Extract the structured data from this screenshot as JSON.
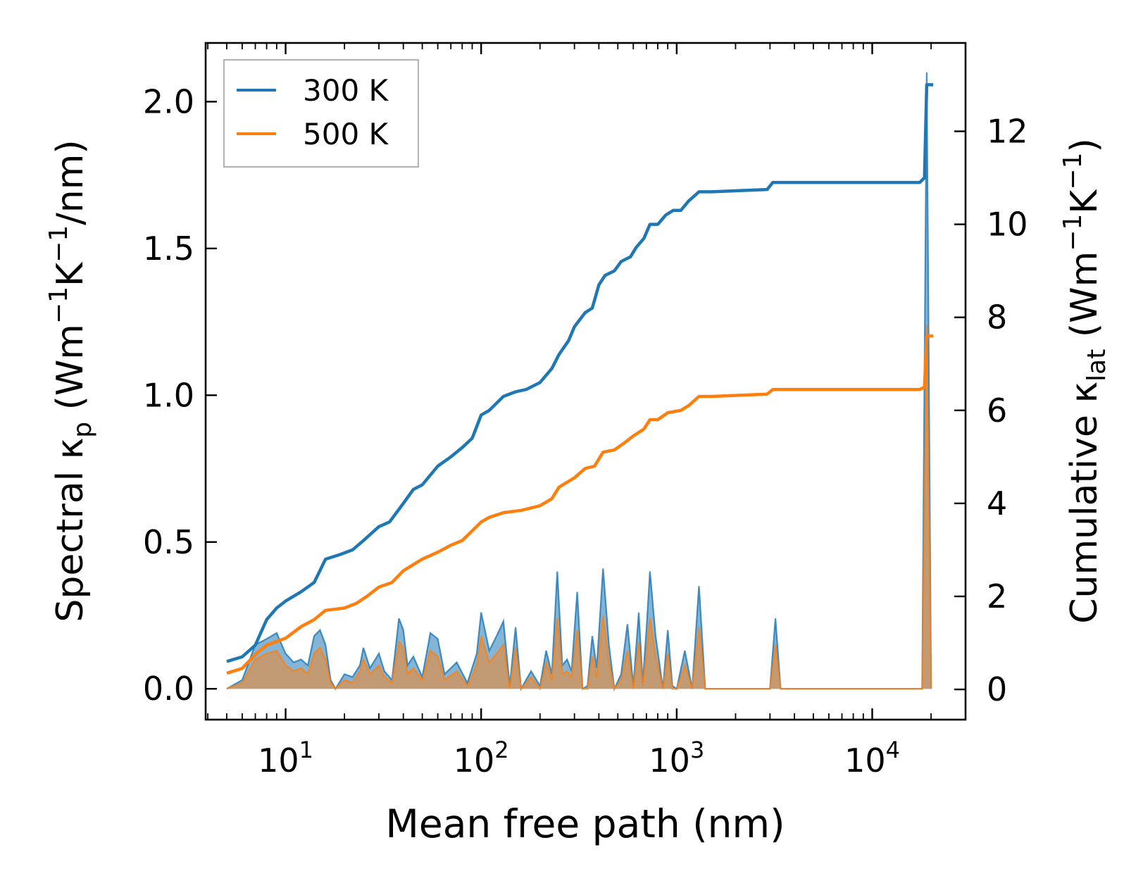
{
  "chart_data": {
    "type": "line",
    "x_scale": "log",
    "xlabel": "Mean free path (nm)",
    "ylabel_left": {
      "pre": "Spectral κ",
      "sub": "p",
      "post": " (Wm",
      "sup1": "−1",
      "mid": "K",
      "sup2": "−1",
      "tail": "/nm)"
    },
    "ylabel_right": {
      "pre": "Cumulative κ",
      "sub": "lat",
      "post": " (Wm",
      "sup1": "−1",
      "mid": "K",
      "sup2": "−1",
      "tail": ")"
    },
    "xlim": [
      3.9,
      30000
    ],
    "ylim_left": [
      -0.105,
      2.2
    ],
    "ylim_right": [
      -0.65,
      13.9
    ],
    "x_ticks": [
      {
        "value": 10,
        "base": "10",
        "exp": "1"
      },
      {
        "value": 100,
        "base": "10",
        "exp": "2"
      },
      {
        "value": 1000,
        "base": "10",
        "exp": "3"
      },
      {
        "value": 10000,
        "base": "10",
        "exp": "4"
      }
    ],
    "y_ticks_left": [
      {
        "value": 0.0,
        "label": "0.0"
      },
      {
        "value": 0.5,
        "label": "0.5"
      },
      {
        "value": 1.0,
        "label": "1.0"
      },
      {
        "value": 1.5,
        "label": "1.5"
      },
      {
        "value": 2.0,
        "label": "2.0"
      }
    ],
    "y_ticks_right": [
      {
        "value": 0,
        "label": "0"
      },
      {
        "value": 2,
        "label": "2"
      },
      {
        "value": 4,
        "label": "4"
      },
      {
        "value": 6,
        "label": "6"
      },
      {
        "value": 8,
        "label": "8"
      },
      {
        "value": 10,
        "label": "10"
      },
      {
        "value": 12,
        "label": "12"
      }
    ],
    "legend_position": "top-left",
    "series": [
      {
        "name": "300 K",
        "color": "#1f77b4",
        "spectral_fill": "rgba(31,119,180,0.55)",
        "spectral": [
          [
            5.0,
            0.0
          ],
          [
            6.0,
            0.03
          ],
          [
            7.0,
            0.15
          ],
          [
            8.0,
            0.17
          ],
          [
            9.0,
            0.19
          ],
          [
            10.0,
            0.12
          ],
          [
            11.0,
            0.09
          ],
          [
            12.0,
            0.1
          ],
          [
            13.0,
            0.08
          ],
          [
            14.0,
            0.18
          ],
          [
            15.0,
            0.2
          ],
          [
            16.0,
            0.15
          ],
          [
            17.0,
            0.03
          ],
          [
            18.0,
            0.0
          ],
          [
            20.0,
            0.05
          ],
          [
            22.0,
            0.04
          ],
          [
            24.0,
            0.08
          ],
          [
            25.0,
            0.14
          ],
          [
            27.0,
            0.07
          ],
          [
            30.0,
            0.12
          ],
          [
            32.0,
            0.06
          ],
          [
            35.0,
            0.03
          ],
          [
            38.0,
            0.24
          ],
          [
            40.0,
            0.2
          ],
          [
            42.0,
            0.08
          ],
          [
            45.0,
            0.11
          ],
          [
            50.0,
            0.04
          ],
          [
            55.0,
            0.19
          ],
          [
            60.0,
            0.17
          ],
          [
            65.0,
            0.05
          ],
          [
            75.0,
            0.09
          ],
          [
            85.0,
            0.02
          ],
          [
            95.0,
            0.12
          ],
          [
            100.0,
            0.26
          ],
          [
            110.0,
            0.13
          ],
          [
            120.0,
            0.18
          ],
          [
            130.0,
            0.23
          ],
          [
            140.0,
            0.01
          ],
          [
            150.0,
            0.21
          ],
          [
            160.0,
            0.0
          ],
          [
            180.0,
            0.06
          ],
          [
            200.0,
            0.01
          ],
          [
            215.0,
            0.13
          ],
          [
            230.0,
            0.05
          ],
          [
            245.0,
            0.4
          ],
          [
            260.0,
            0.08
          ],
          [
            275.0,
            0.1
          ],
          [
            290.0,
            0.06
          ],
          [
            310.0,
            0.33
          ],
          [
            330.0,
            0.0
          ],
          [
            350.0,
            0.01
          ],
          [
            370.0,
            0.18
          ],
          [
            390.0,
            0.07
          ],
          [
            420.0,
            0.41
          ],
          [
            450.0,
            0.15
          ],
          [
            480.0,
            0.0
          ],
          [
            520.0,
            0.05
          ],
          [
            560.0,
            0.22
          ],
          [
            600.0,
            0.01
          ],
          [
            640.0,
            0.26
          ],
          [
            670.0,
            0.02
          ],
          [
            700.0,
            0.2
          ],
          [
            730.0,
            0.4
          ],
          [
            780.0,
            0.18
          ],
          [
            850.0,
            0.0
          ],
          [
            900.0,
            0.2
          ],
          [
            950.0,
            0.01
          ],
          [
            1000.0,
            0.0
          ],
          [
            1100.0,
            0.13
          ],
          [
            1200.0,
            0.0
          ],
          [
            1300.0,
            0.35
          ],
          [
            1400.0,
            0.0
          ],
          [
            3000.0,
            0.0
          ],
          [
            3200.0,
            0.24
          ],
          [
            3400.0,
            0.0
          ],
          [
            18000.0,
            0.0
          ],
          [
            19000.0,
            2.1
          ],
          [
            20000.0,
            0.0
          ]
        ],
        "cumulative": [
          [
            5.0,
            0.6
          ],
          [
            6.0,
            0.7
          ],
          [
            7.0,
            0.95
          ],
          [
            8.0,
            1.5
          ],
          [
            9.0,
            1.75
          ],
          [
            10.0,
            1.9
          ],
          [
            12.0,
            2.1
          ],
          [
            14.0,
            2.3
          ],
          [
            16.0,
            2.8
          ],
          [
            19.0,
            2.9
          ],
          [
            22.0,
            3.0
          ],
          [
            25.0,
            3.2
          ],
          [
            30.0,
            3.5
          ],
          [
            34.0,
            3.6
          ],
          [
            40.0,
            4.0
          ],
          [
            45.0,
            4.3
          ],
          [
            50.0,
            4.4
          ],
          [
            60.0,
            4.8
          ],
          [
            70.0,
            5.0
          ],
          [
            80.0,
            5.2
          ],
          [
            90.0,
            5.4
          ],
          [
            100.0,
            5.9
          ],
          [
            110.0,
            6.0
          ],
          [
            130.0,
            6.3
          ],
          [
            150.0,
            6.4
          ],
          [
            170.0,
            6.45
          ],
          [
            200.0,
            6.6
          ],
          [
            230.0,
            6.9
          ],
          [
            250.0,
            7.2
          ],
          [
            280.0,
            7.5
          ],
          [
            300.0,
            7.8
          ],
          [
            340.0,
            8.1
          ],
          [
            370.0,
            8.2
          ],
          [
            400.0,
            8.7
          ],
          [
            430.0,
            8.9
          ],
          [
            480.0,
            9.0
          ],
          [
            520.0,
            9.2
          ],
          [
            580.0,
            9.3
          ],
          [
            620.0,
            9.5
          ],
          [
            680.0,
            9.7
          ],
          [
            730.0,
            10.0
          ],
          [
            800.0,
            10.0
          ],
          [
            880.0,
            10.2
          ],
          [
            960.0,
            10.3
          ],
          [
            1050.0,
            10.3
          ],
          [
            1150.0,
            10.5
          ],
          [
            1300.0,
            10.7
          ],
          [
            1500.0,
            10.7
          ],
          [
            2900.0,
            10.75
          ],
          [
            3100.0,
            10.9
          ],
          [
            17500.0,
            10.9
          ],
          [
            18500.0,
            11.0
          ],
          [
            19000.0,
            13.0
          ],
          [
            20500.0,
            13.0
          ]
        ]
      },
      {
        "name": "500 K",
        "color": "#ff7f0e",
        "spectral_fill": "rgba(205,150,100,0.85)",
        "spectral": [
          [
            5.0,
            0.0
          ],
          [
            6.0,
            0.02
          ],
          [
            7.0,
            0.1
          ],
          [
            8.0,
            0.12
          ],
          [
            9.0,
            0.13
          ],
          [
            10.0,
            0.08
          ],
          [
            11.0,
            0.06
          ],
          [
            12.0,
            0.07
          ],
          [
            13.0,
            0.05
          ],
          [
            14.0,
            0.12
          ],
          [
            15.0,
            0.14
          ],
          [
            16.0,
            0.1
          ],
          [
            17.0,
            0.02
          ],
          [
            18.0,
            0.0
          ],
          [
            20.0,
            0.03
          ],
          [
            22.0,
            0.02
          ],
          [
            24.0,
            0.06
          ],
          [
            25.0,
            0.1
          ],
          [
            27.0,
            0.05
          ],
          [
            30.0,
            0.08
          ],
          [
            32.0,
            0.04
          ],
          [
            35.0,
            0.02
          ],
          [
            38.0,
            0.16
          ],
          [
            40.0,
            0.14
          ],
          [
            42.0,
            0.05
          ],
          [
            45.0,
            0.07
          ],
          [
            50.0,
            0.03
          ],
          [
            55.0,
            0.13
          ],
          [
            60.0,
            0.11
          ],
          [
            65.0,
            0.03
          ],
          [
            75.0,
            0.06
          ],
          [
            85.0,
            0.01
          ],
          [
            95.0,
            0.08
          ],
          [
            100.0,
            0.18
          ],
          [
            110.0,
            0.09
          ],
          [
            120.0,
            0.12
          ],
          [
            130.0,
            0.15
          ],
          [
            140.0,
            0.0
          ],
          [
            150.0,
            0.14
          ],
          [
            160.0,
            0.0
          ],
          [
            180.0,
            0.04
          ],
          [
            200.0,
            0.0
          ],
          [
            215.0,
            0.09
          ],
          [
            230.0,
            0.03
          ],
          [
            245.0,
            0.24
          ],
          [
            260.0,
            0.05
          ],
          [
            275.0,
            0.06
          ],
          [
            290.0,
            0.04
          ],
          [
            310.0,
            0.2
          ],
          [
            330.0,
            0.0
          ],
          [
            350.0,
            0.0
          ],
          [
            370.0,
            0.11
          ],
          [
            390.0,
            0.04
          ],
          [
            420.0,
            0.25
          ],
          [
            450.0,
            0.09
          ],
          [
            480.0,
            0.0
          ],
          [
            520.0,
            0.03
          ],
          [
            560.0,
            0.13
          ],
          [
            600.0,
            0.0
          ],
          [
            640.0,
            0.16
          ],
          [
            670.0,
            0.01
          ],
          [
            700.0,
            0.12
          ],
          [
            730.0,
            0.24
          ],
          [
            780.0,
            0.11
          ],
          [
            850.0,
            0.0
          ],
          [
            900.0,
            0.12
          ],
          [
            950.0,
            0.0
          ],
          [
            1000.0,
            0.0
          ],
          [
            1100.0,
            0.08
          ],
          [
            1200.0,
            0.0
          ],
          [
            1300.0,
            0.21
          ],
          [
            1400.0,
            0.0
          ],
          [
            3000.0,
            0.0
          ],
          [
            3200.0,
            0.15
          ],
          [
            3400.0,
            0.0
          ],
          [
            18000.0,
            0.0
          ],
          [
            19000.0,
            1.24
          ],
          [
            20000.0,
            0.0
          ]
        ],
        "cumulative": [
          [
            5.0,
            0.35
          ],
          [
            6.0,
            0.45
          ],
          [
            7.0,
            0.75
          ],
          [
            8.0,
            0.95
          ],
          [
            10.0,
            1.1
          ],
          [
            12.0,
            1.35
          ],
          [
            14.0,
            1.5
          ],
          [
            16.0,
            1.7
          ],
          [
            20.0,
            1.75
          ],
          [
            23.0,
            1.85
          ],
          [
            26.0,
            2.0
          ],
          [
            30.0,
            2.2
          ],
          [
            35.0,
            2.3
          ],
          [
            40.0,
            2.55
          ],
          [
            50.0,
            2.8
          ],
          [
            60.0,
            2.95
          ],
          [
            70.0,
            3.1
          ],
          [
            80.0,
            3.2
          ],
          [
            100.0,
            3.6
          ],
          [
            110.0,
            3.7
          ],
          [
            130.0,
            3.8
          ],
          [
            160.0,
            3.85
          ],
          [
            200.0,
            3.95
          ],
          [
            230.0,
            4.1
          ],
          [
            250.0,
            4.35
          ],
          [
            300.0,
            4.55
          ],
          [
            340.0,
            4.75
          ],
          [
            380.0,
            4.8
          ],
          [
            420.0,
            5.1
          ],
          [
            480.0,
            5.15
          ],
          [
            540.0,
            5.3
          ],
          [
            600.0,
            5.45
          ],
          [
            680.0,
            5.6
          ],
          [
            730.0,
            5.8
          ],
          [
            800.0,
            5.8
          ],
          [
            900.0,
            5.95
          ],
          [
            1050.0,
            6.0
          ],
          [
            1150.0,
            6.1
          ],
          [
            1300.0,
            6.3
          ],
          [
            1500.0,
            6.3
          ],
          [
            2900.0,
            6.35
          ],
          [
            3100.0,
            6.45
          ],
          [
            17500.0,
            6.45
          ],
          [
            18500.0,
            6.5
          ],
          [
            19000.0,
            7.6
          ],
          [
            20500.0,
            7.6
          ]
        ]
      }
    ]
  }
}
